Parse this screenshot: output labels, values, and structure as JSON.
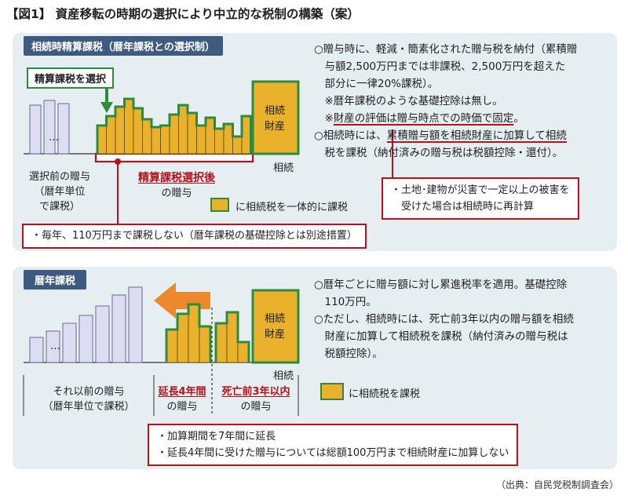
{
  "title": "【図1】 資産移転の時期の選択により中立的な税制の構築（案）",
  "colors": {
    "navy": "#3d5a80",
    "gold": "#e9b12c",
    "green": "#2e8b3e",
    "red": "#b5121b",
    "lavender": "#dedcf2",
    "panel": "#e6eef1"
  },
  "top_panel": {
    "tag": "相続時精算課税（暦年課税との選択制）",
    "select_label": "精算課税を選択",
    "dots": "…",
    "estate_label": [
      "相続",
      "財産"
    ],
    "inherit_label": "相続",
    "caption_before": [
      "選択前の贈与",
      "（暦年単位",
      "で課税）"
    ],
    "caption_after_red": "精算課税選択後",
    "caption_after": "の贈与",
    "legend": "に相続税を一体的に課税",
    "bottom_note": "・毎年、110万円まで課税しない（暦年課税の基礎控除とは別途措置）",
    "bars_before": [
      62,
      68,
      64
    ],
    "bars_after": [
      36,
      48,
      60,
      70,
      58,
      44,
      34,
      36,
      50,
      62,
      52,
      36,
      46,
      32,
      38,
      22,
      48
    ],
    "estate_bar": 92,
    "text_lines": [
      "○贈与時に、軽減・簡素化された贈与税を納付（累積贈",
      "　与額2,500万円までは非課税、2,500万円を超えた",
      "　部分に一律20%課税）。",
      "　※暦年課税のような基礎控除は無し。"
    ],
    "line5_a": "　※",
    "line5_b": "財産の評価は贈与時点での時価で固定",
    "line5_c": "。",
    "line6_a": "○相続時には、",
    "line6_b": "累積贈与額を相続財産に加算して相続",
    "line7": "　税を課税（納付済みの贈与税は税額控除・還付）。",
    "disaster_note": [
      "・土地･建物が災害で一定以上の被害を",
      "　受けた場合は相続時に再計算"
    ]
  },
  "bottom_panel": {
    "tag": "暦年課税",
    "dots": "…",
    "estate_label": [
      "相続",
      "財産"
    ],
    "inherit_label": "相続",
    "caption_before": [
      "それ以前の贈与",
      "（暦年単位で課税）"
    ],
    "caption_mid_red": "延長4年間",
    "caption_mid": "の贈与",
    "caption_last_red": "死亡前3年以内",
    "caption_last": "の贈与",
    "legend": "に相続税を課税",
    "bars_before": [
      32,
      40,
      50,
      60,
      72,
      86,
      96
    ],
    "bars_mid": [
      42,
      62,
      74,
      46
    ],
    "bars_last": [
      50,
      64,
      26
    ],
    "estate_bar": 92,
    "text_lines": [
      "○暦年ごとに贈与額に対し累進税率を適用。基礎控除",
      "　110万円。",
      "○ただし、相続時には、死亡前3年以内の贈与額を相続",
      "　財産に加算して相続税を課税（納付済みの贈与税は",
      "　税額控除）。"
    ],
    "notes": [
      "・加算期間を7年間に延長",
      "・延長4年間に受けた贈与については総額100万円まで相続財産に加算しない"
    ]
  },
  "source": "（出典：自民党税制調査会）"
}
